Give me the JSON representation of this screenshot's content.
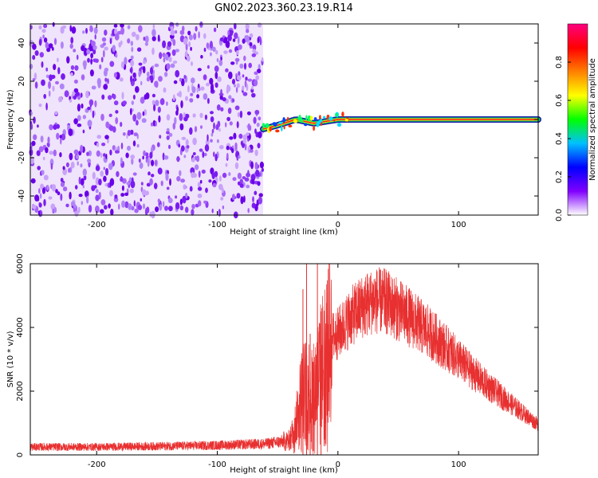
{
  "title": "GN02.2023.360.23.19.R14",
  "chart_data": [
    {
      "type": "heatmap",
      "xlabel": "Height of straight line (km)",
      "ylabel": "Frequency (Hz)",
      "xlim": [
        -255,
        166
      ],
      "ylim": [
        -50,
        50
      ],
      "x_ticks": [
        -200,
        -100,
        0,
        100
      ],
      "x_tick_labels": [
        "-200",
        "-100",
        "0",
        "100"
      ],
      "y_ticks": [
        -40,
        -20,
        0,
        20,
        40
      ],
      "y_tick_labels": [
        "-40",
        "-20",
        "0",
        "20",
        "40"
      ],
      "noise_region_x": [
        -255,
        -62
      ],
      "signal_track": {
        "x_start": -62,
        "x_end": 166,
        "frequency_hz": 0,
        "description_points": [
          {
            "x": -62,
            "y": -5
          },
          {
            "x": -50,
            "y": -3
          },
          {
            "x": -35,
            "y": 0
          },
          {
            "x": -20,
            "y": -2
          },
          {
            "x": 0,
            "y": 0
          },
          {
            "x": 166,
            "y": 0
          }
        ]
      },
      "colorbar": {
        "label": "Normalized spectral amplitude",
        "range": [
          0,
          1
        ],
        "ticks": [
          0.0,
          0.2,
          0.4,
          0.6,
          0.8
        ],
        "tick_labels": [
          "0.0",
          "0.2",
          "0.4",
          "0.6",
          "0.8"
        ],
        "colormap": [
          "#ffffff",
          "#8000ff",
          "#0000ff",
          "#00c0ff",
          "#00ff00",
          "#ffff00",
          "#ff8000",
          "#ff0000",
          "#ff0080"
        ]
      }
    },
    {
      "type": "line",
      "xlabel": "Height of straight line (km)",
      "ylabel": "SNR (10 * v/v)",
      "xlim": [
        -255,
        166
      ],
      "ylim": [
        0,
        6000
      ],
      "x_ticks": [
        -200,
        -100,
        0,
        100
      ],
      "x_tick_labels": [
        "-200",
        "-100",
        "0",
        "100"
      ],
      "y_ticks": [
        0,
        2000,
        4000,
        6000
      ],
      "y_tick_labels": [
        "0",
        "2000",
        "4000",
        "6000"
      ],
      "line_color": "#e83030",
      "envelope": {
        "x": [
          -255,
          -200,
          -150,
          -100,
          -60,
          -40,
          -35,
          -30,
          -25,
          -20,
          -15,
          -10,
          -5,
          0,
          10,
          20,
          30,
          40,
          60,
          80,
          100,
          120,
          140,
          166
        ],
        "y": [
          250,
          250,
          270,
          300,
          350,
          450,
          1000,
          2000,
          2200,
          2000,
          2700,
          3300,
          3700,
          3800,
          4300,
          4650,
          4850,
          4800,
          4300,
          3700,
          3000,
          2300,
          1700,
          950
        ]
      },
      "spikes": [
        {
          "x": -29,
          "y": 5200
        },
        {
          "x": -26,
          "y": 6000
        },
        {
          "x": -23,
          "y": 3800
        },
        {
          "x": -17,
          "y": 6000
        },
        {
          "x": -14,
          "y": 4500
        }
      ]
    }
  ]
}
